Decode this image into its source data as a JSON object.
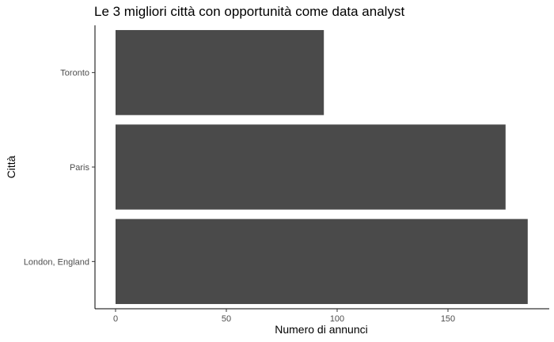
{
  "chart_data": {
    "type": "bar",
    "orientation": "horizontal",
    "title": "Le 3 migliori città con opportunità come data analyst",
    "xlabel": "Numero di annunci",
    "ylabel": "Città",
    "categories": [
      "Toronto",
      "Paris",
      "London, England"
    ],
    "values": [
      94,
      176,
      186
    ],
    "xlim": [
      0,
      195
    ],
    "x_ticks": [
      0,
      50,
      100,
      150
    ],
    "bar_color": "#4a4a4a",
    "grid": false,
    "legend": "none"
  }
}
